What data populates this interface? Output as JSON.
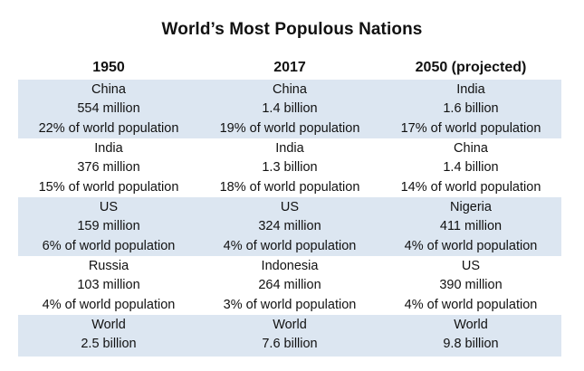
{
  "title": "World’s Most Populous Nations",
  "columns": [
    "1950",
    "2017",
    "2050 (projected)"
  ],
  "rows": [
    [
      {
        "country": "China",
        "population": "554 million",
        "share": "22% of world population"
      },
      {
        "country": "China",
        "population": "1.4 billion",
        "share": "19% of world population"
      },
      {
        "country": "India",
        "population": "1.6 billion",
        "share": "17% of world population"
      }
    ],
    [
      {
        "country": "India",
        "population": "376 million",
        "share": "15% of world population"
      },
      {
        "country": "India",
        "population": "1.3 billion",
        "share": "18% of world population"
      },
      {
        "country": "China",
        "population": "1.4 billion",
        "share": "14% of world population"
      }
    ],
    [
      {
        "country": "US",
        "population": "159 million",
        "share": "6% of world population"
      },
      {
        "country": "US",
        "population": "324 million",
        "share": "4% of world population"
      },
      {
        "country": "Nigeria",
        "population": "411 million",
        "share": "4% of world population"
      }
    ],
    [
      {
        "country": "Russia",
        "population": "103 million",
        "share": "4% of world population"
      },
      {
        "country": "Indonesia",
        "population": "264 million",
        "share": "3% of world population"
      },
      {
        "country": "US",
        "population": "390 million",
        "share": "4% of world population"
      }
    ],
    [
      {
        "country": "World",
        "population": "2.5 billion"
      },
      {
        "country": "World",
        "population": "7.6 billion"
      },
      {
        "country": "World",
        "population": "9.8 billion"
      }
    ]
  ],
  "colors": {
    "band": "#dce6f1",
    "background": "#ffffff",
    "text": "#111111"
  }
}
